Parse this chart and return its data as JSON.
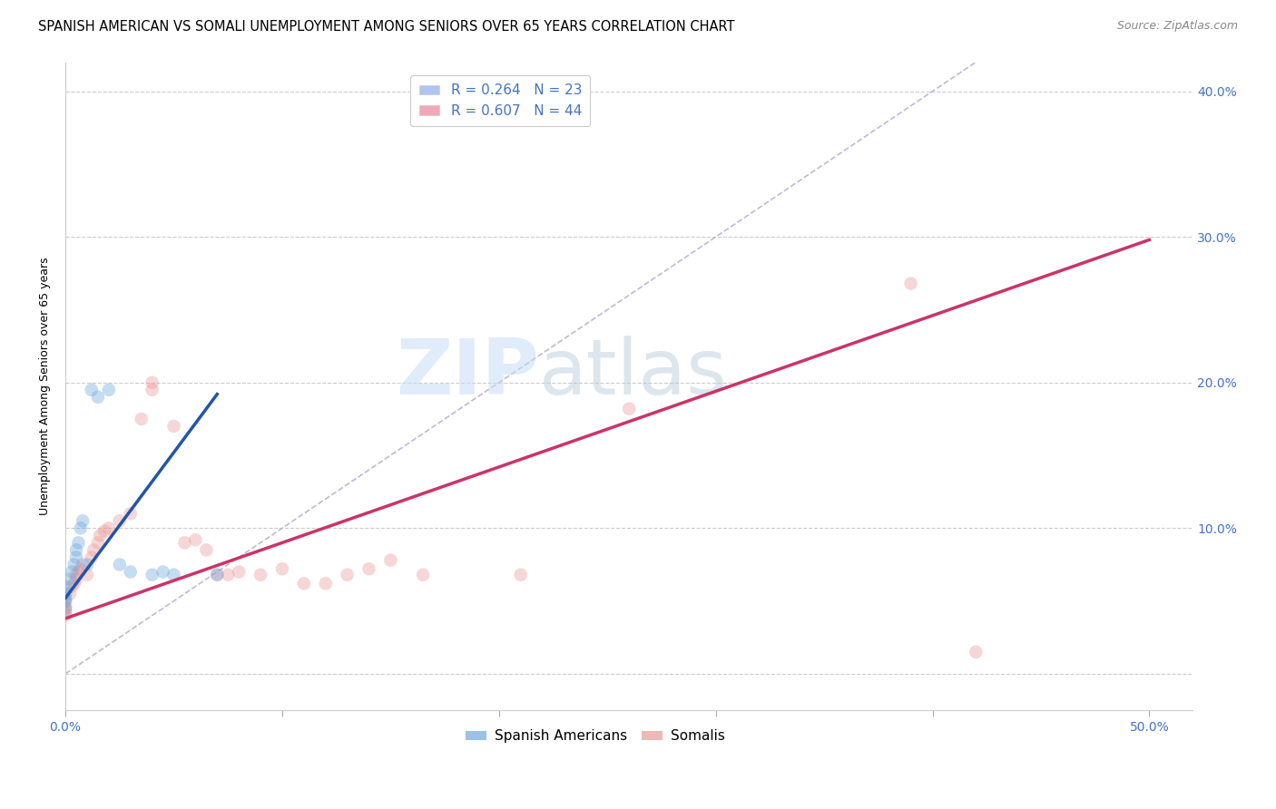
{
  "title": "SPANISH AMERICAN VS SOMALI UNEMPLOYMENT AMONG SENIORS OVER 65 YEARS CORRELATION CHART",
  "source": "Source: ZipAtlas.com",
  "ylabel_label": "Unemployment Among Seniors over 65 years",
  "x_ticks": [
    0.0,
    0.1,
    0.2,
    0.3,
    0.4,
    0.5
  ],
  "x_tick_labels": [
    "0.0%",
    "",
    "",
    "",
    "",
    "50.0%"
  ],
  "y_ticks_right": [
    0.0,
    0.1,
    0.2,
    0.3,
    0.4
  ],
  "y_tick_labels_right": [
    "",
    "10.0%",
    "20.0%",
    "30.0%",
    "40.0%"
  ],
  "xlim": [
    0.0,
    0.52
  ],
  "ylim": [
    -0.025,
    0.42
  ],
  "legend_entries": [
    {
      "label": "R = 0.264   N = 23",
      "color": "#aec6ef"
    },
    {
      "label": "R = 0.607   N = 44",
      "color": "#f4a7b9"
    }
  ],
  "watermark_zip": "ZIP",
  "watermark_atlas": "atlas",
  "spanish_color": "#6fa8dc",
  "somali_color": "#ea9999",
  "spanish_line_color": "#2255aa",
  "somali_line_color": "#cc3366",
  "diagonal_color": "#aaaacc",
  "title_fontsize": 10.5,
  "source_fontsize": 9,
  "axis_label_fontsize": 9,
  "tick_fontsize": 10,
  "legend_fontsize": 11,
  "marker_size": 110,
  "marker_alpha": 0.4,
  "sa_x": [
    0.0,
    0.0,
    0.0,
    0.0,
    0.0,
    0.002,
    0.003,
    0.004,
    0.005,
    0.005,
    0.006,
    0.007,
    0.008,
    0.01,
    0.012,
    0.015,
    0.02,
    0.025,
    0.03,
    0.04,
    0.045,
    0.05,
    0.07
  ],
  "sa_y": [
    0.045,
    0.05,
    0.052,
    0.055,
    0.06,
    0.065,
    0.07,
    0.075,
    0.08,
    0.085,
    0.09,
    0.1,
    0.105,
    0.075,
    0.195,
    0.19,
    0.195,
    0.075,
    0.07,
    0.068,
    0.07,
    0.068,
    0.068
  ],
  "so_x": [
    0.0,
    0.0,
    0.0,
    0.0,
    0.0,
    0.002,
    0.003,
    0.004,
    0.005,
    0.005,
    0.006,
    0.007,
    0.008,
    0.01,
    0.012,
    0.013,
    0.015,
    0.016,
    0.018,
    0.02,
    0.025,
    0.03,
    0.035,
    0.04,
    0.04,
    0.05,
    0.055,
    0.06,
    0.065,
    0.07,
    0.075,
    0.08,
    0.09,
    0.1,
    0.11,
    0.12,
    0.13,
    0.14,
    0.15,
    0.165,
    0.21,
    0.26,
    0.39,
    0.42
  ],
  "so_y": [
    0.04,
    0.042,
    0.044,
    0.046,
    0.05,
    0.055,
    0.06,
    0.062,
    0.065,
    0.068,
    0.07,
    0.072,
    0.075,
    0.068,
    0.08,
    0.085,
    0.09,
    0.095,
    0.098,
    0.1,
    0.105,
    0.11,
    0.175,
    0.195,
    0.2,
    0.17,
    0.09,
    0.092,
    0.085,
    0.068,
    0.068,
    0.07,
    0.068,
    0.072,
    0.062,
    0.062,
    0.068,
    0.072,
    0.078,
    0.068,
    0.068,
    0.182,
    0.268,
    0.015
  ],
  "sa_regline": [
    0.0,
    0.07
  ],
  "sa_regline_y": [
    0.052,
    0.192
  ],
  "so_regline": [
    0.0,
    0.5
  ],
  "so_regline_y": [
    0.038,
    0.298
  ]
}
